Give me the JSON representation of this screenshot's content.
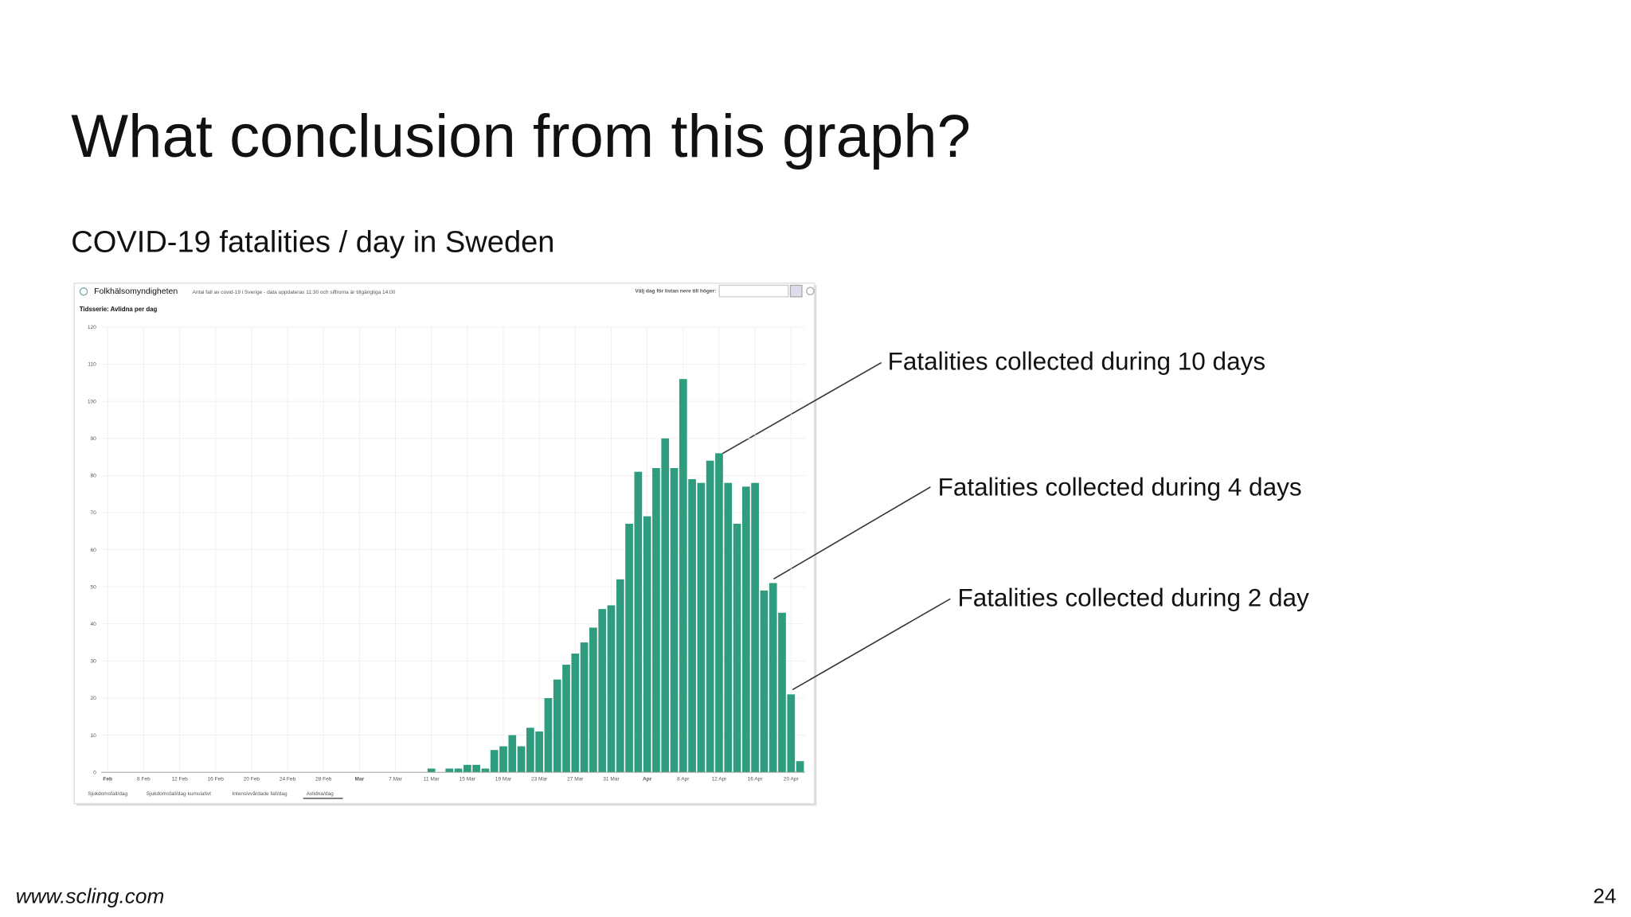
{
  "slide": {
    "title": "What conclusion from this graph?",
    "subtitle": "COVID-19 fatalities / day in Sweden",
    "footer": "www.scling.com",
    "page_number": "24"
  },
  "chart_data": {
    "type": "bar",
    "source": "Folkhälsomyndigheten",
    "header_note": "Antal fall av covid-19 i Sverige - data uppdateras 11:30 och siffrorna är tillgängliga 14:00",
    "date_picker_label": "Välj dag för listan nere till höger:",
    "title": "Tidsserie: Avlidna per dag",
    "tabs": [
      "Sjukdomsfall/dag",
      "Sjukdomsfall/dag kumulativt",
      "Intensivvårdade fall/dag",
      "Avlidna/dag"
    ],
    "categories": [
      "Feb",
      null,
      null,
      null,
      "8 Feb",
      null,
      null,
      null,
      "12 Feb",
      null,
      null,
      null,
      "16 Feb",
      null,
      null,
      null,
      "20 Feb",
      null,
      null,
      null,
      "24 Feb",
      null,
      null,
      null,
      "28 Feb",
      null,
      null,
      null,
      "Mar",
      null,
      null,
      null,
      "7 Mar",
      null,
      null,
      null,
      "11 Mar",
      null,
      null,
      null,
      "15 Mar",
      null,
      null,
      null,
      "19 Mar",
      null,
      null,
      null,
      "23 Mar",
      null,
      null,
      null,
      "27 Mar",
      null,
      null,
      null,
      "31 Mar",
      null,
      null,
      null,
      "Apr",
      null,
      null,
      null,
      "8 Apr",
      null,
      null,
      null,
      "12 Apr",
      null,
      null,
      null,
      "16 Apr",
      null,
      null,
      null,
      "20 Apr",
      null
    ],
    "values": [
      0,
      0,
      0,
      0,
      0,
      0,
      0,
      0,
      0,
      0,
      0,
      0,
      0,
      0,
      0,
      0,
      0,
      0,
      0,
      0,
      0,
      0,
      0,
      0,
      0,
      0,
      0,
      0,
      0,
      0,
      0,
      0,
      0,
      0,
      0,
      0,
      1,
      0,
      1,
      1,
      2,
      2,
      1,
      6,
      7,
      10,
      7,
      12,
      11,
      20,
      25,
      29,
      32,
      35,
      39,
      44,
      45,
      52,
      67,
      81,
      69,
      82,
      90,
      82,
      106,
      79,
      78,
      84,
      86,
      78,
      67,
      77,
      78,
      49,
      51,
      43,
      21,
      3
    ],
    "color": "#2f9c7f",
    "ylim": [
      0,
      120
    ],
    "yticks": [
      0,
      10,
      20,
      30,
      40,
      50,
      60,
      70,
      80,
      90,
      100,
      110,
      120
    ],
    "grid": true,
    "annotations": [
      "Fatalities collected during 10 days",
      "Fatalities collected during 4 days",
      "Fatalities collected during 2 day"
    ]
  }
}
